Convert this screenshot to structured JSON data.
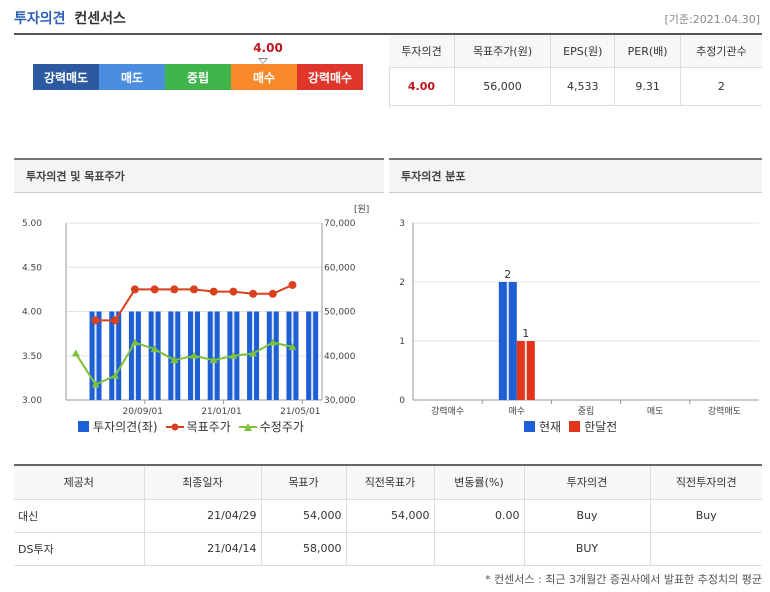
{
  "header": {
    "title_main": "투자의견",
    "title_sub": "컨센서스",
    "date": "[기준:2021.04.30]"
  },
  "opinion": {
    "value": "4.00",
    "level": 4.0,
    "segments": [
      {
        "label": "강력매도",
        "color": "#2c5aa0"
      },
      {
        "label": "매도",
        "color": "#4a8ee0"
      },
      {
        "label": "중립",
        "color": "#3eb44a"
      },
      {
        "label": "매수",
        "color": "#f7892b"
      },
      {
        "label": "강력매수",
        "color": "#e0352b"
      }
    ]
  },
  "summary": {
    "headers": [
      "투자의견",
      "목표주가(원)",
      "EPS(원)",
      "PER(배)",
      "추정기관수"
    ],
    "values": [
      "4.00",
      "56,000",
      "4,533",
      "9.31",
      "2"
    ]
  },
  "chart_titles": {
    "left": "투자의견 및 목표주가",
    "right": "투자의견 분포"
  },
  "chart_data": [
    {
      "type": "bar",
      "unit_label": "[원]",
      "x_ticks": [
        {
          "index": 4,
          "label": "20/09/01"
        },
        {
          "index": 8,
          "label": "21/01/01"
        },
        {
          "index": 12,
          "label": "21/05/01"
        }
      ],
      "y_left": {
        "min": 3.0,
        "max": 5.0,
        "ticks": [
          "5.00",
          "4.50",
          "4.00",
          "3.50",
          "3.00"
        ]
      },
      "y_right": {
        "min": 30000,
        "max": 70000,
        "ticks": [
          "70,000",
          "60,000",
          "50,000",
          "40,000",
          "30,000"
        ]
      },
      "legend": [
        "투자의견(좌)",
        "목표주가",
        "수정주가"
      ],
      "series": [
        {
          "name": "투자의견(좌)",
          "kind": "bar",
          "axis": "left",
          "color": "#1f5fd6",
          "values": [
            null,
            4.0,
            4.0,
            4.0,
            4.0,
            4.0,
            4.0,
            4.0,
            4.0,
            4.0,
            4.0,
            4.0,
            4.0
          ]
        },
        {
          "name": "목표주가",
          "kind": "line",
          "marker": "circle",
          "axis": "right",
          "color": "#d9411e",
          "values": [
            null,
            48000,
            48000,
            55000,
            55000,
            55000,
            55000,
            54500,
            54500,
            54000,
            54000,
            56000
          ]
        },
        {
          "name": "수정주가",
          "kind": "line",
          "marker": "triangle",
          "axis": "right",
          "color": "#7cc23c",
          "values": [
            40500,
            33500,
            35500,
            43000,
            41500,
            39000,
            40000,
            39000,
            40000,
            40500,
            43000,
            42000
          ]
        }
      ]
    },
    {
      "type": "bar",
      "categories": [
        "강력매수",
        "매수",
        "중립",
        "매도",
        "강력매도"
      ],
      "y_ticks": [
        "3",
        "2",
        "1",
        "0"
      ],
      "ylim": [
        0,
        3
      ],
      "legend": [
        "현재",
        "한달전"
      ],
      "series": [
        {
          "name": "현재",
          "color": "#1f5fd6",
          "values": [
            0,
            2,
            0,
            0,
            0
          ]
        },
        {
          "name": "한달전",
          "color": "#e0351b",
          "values": [
            0,
            1,
            0,
            0,
            0
          ]
        }
      ]
    }
  ],
  "table": {
    "headers": [
      "제공처",
      "최종일자",
      "목표가",
      "직전목표가",
      "변동률(%)",
      "투자의견",
      "직전투자의견"
    ],
    "rows": [
      [
        "대신",
        "21/04/29",
        "54,000",
        "54,000",
        "0.00",
        "Buy",
        "Buy"
      ],
      [
        "DS투자",
        "21/04/14",
        "58,000",
        "",
        "",
        "BUY",
        ""
      ]
    ]
  },
  "footnote": "* 컨센서스 : 최근 3개월간 증권사에서 발표한 추정치의 평균"
}
